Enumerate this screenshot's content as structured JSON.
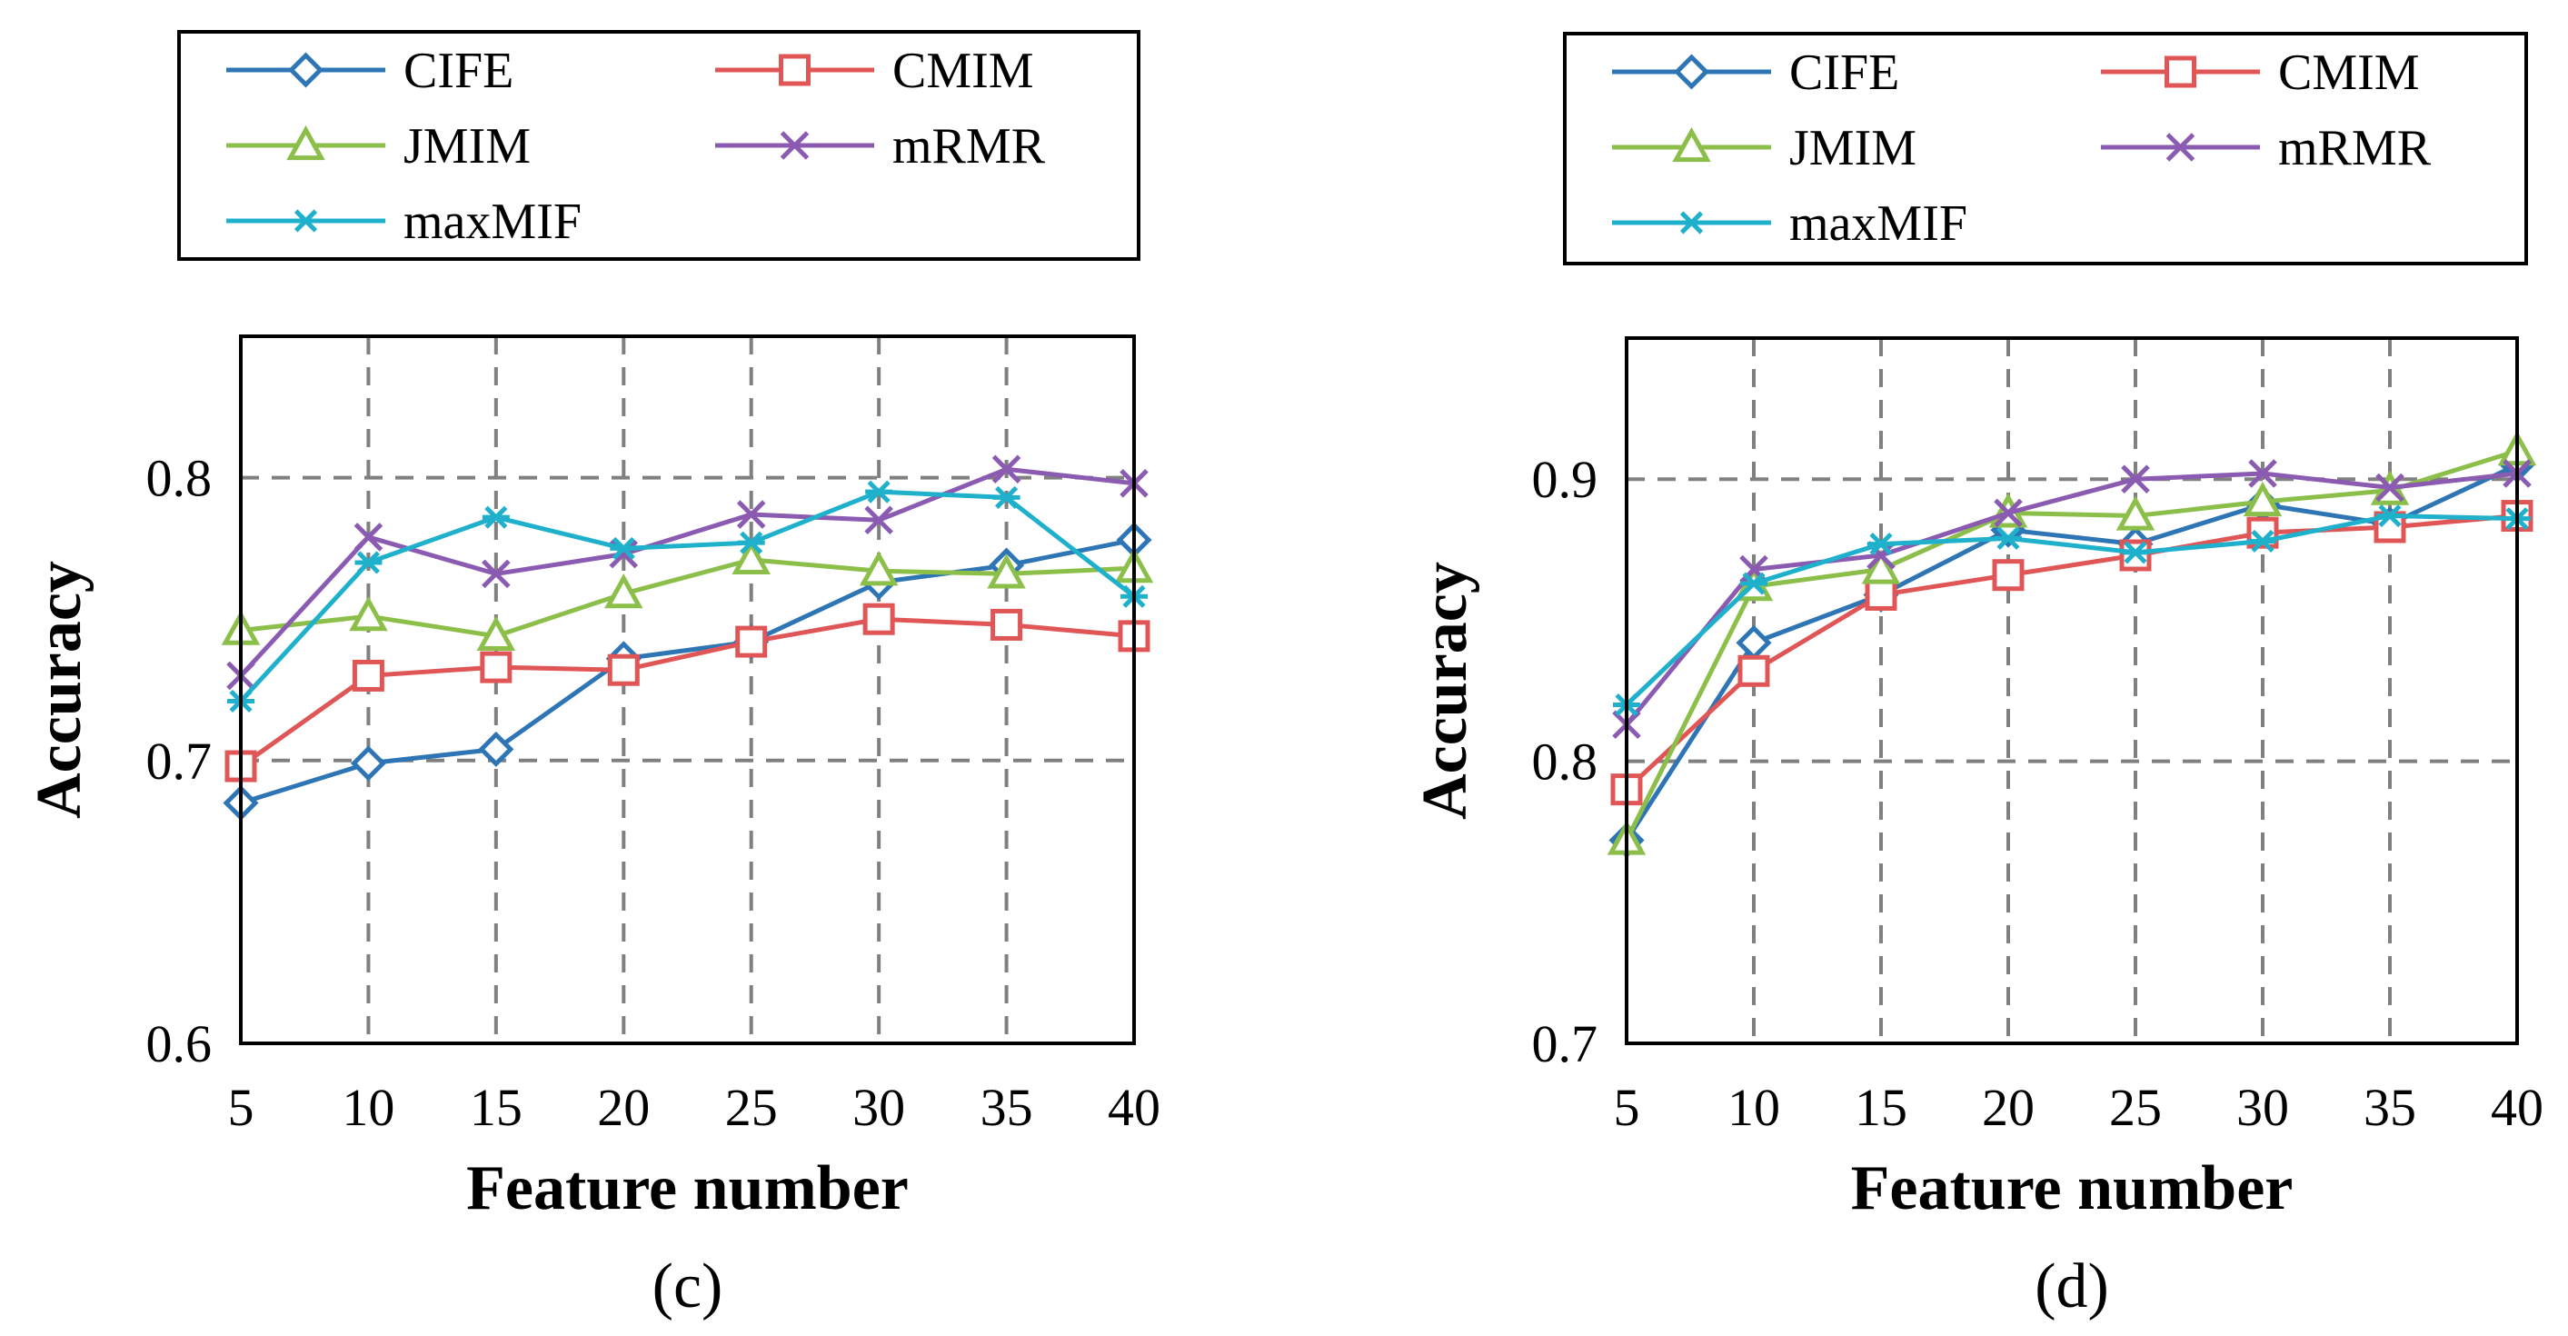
{
  "chart_data": [
    {
      "type": "line",
      "panel_label": "(c)",
      "xlabel": "Feature number",
      "ylabel": "Accuracy",
      "x": [
        5,
        10,
        15,
        20,
        25,
        30,
        35,
        40
      ],
      "xticks": [
        "5",
        "10",
        "15",
        "20",
        "25",
        "30",
        "35",
        "40"
      ],
      "ylim": [
        0.6,
        0.85
      ],
      "yticks": [
        0.6,
        0.7,
        0.8
      ],
      "ytick_labels": [
        "0.6",
        "0.7",
        "0.8"
      ],
      "grid": true,
      "legend_position": "top",
      "series": [
        {
          "name": "CIFE",
          "color": "#2e75b6",
          "marker": "diamond",
          "values": [
            0.685,
            0.699,
            0.704,
            0.736,
            0.742,
            0.763,
            0.769,
            0.778
          ]
        },
        {
          "name": "CMIM",
          "color": "#e05555",
          "marker": "square",
          "values": [
            0.698,
            0.73,
            0.733,
            0.732,
            0.742,
            0.75,
            0.748,
            0.744
          ]
        },
        {
          "name": "JMIM",
          "color": "#8cbe4a",
          "marker": "triangle",
          "values": [
            0.746,
            0.751,
            0.744,
            0.759,
            0.771,
            0.767,
            0.766,
            0.768
          ]
        },
        {
          "name": "mRMR",
          "color": "#8a5bb0",
          "marker": "x",
          "values": [
            0.73,
            0.779,
            0.766,
            0.773,
            0.787,
            0.785,
            0.803,
            0.798
          ]
        },
        {
          "name": "maxMIF",
          "color": "#1fb0cc",
          "marker": "star",
          "values": [
            0.721,
            0.77,
            0.786,
            0.775,
            0.777,
            0.795,
            0.793,
            0.758
          ]
        }
      ]
    },
    {
      "type": "line",
      "panel_label": "(d)",
      "xlabel": "Feature number",
      "ylabel": "Accuracy",
      "x": [
        5,
        10,
        15,
        20,
        25,
        30,
        35,
        40
      ],
      "xticks": [
        "5",
        "10",
        "15",
        "20",
        "25",
        "30",
        "35",
        "40"
      ],
      "ylim": [
        0.7,
        0.95
      ],
      "yticks": [
        0.7,
        0.8,
        0.9
      ],
      "ytick_labels": [
        "0.7",
        "0.8",
        "0.9"
      ],
      "grid": true,
      "legend_position": "top",
      "series": [
        {
          "name": "CIFE",
          "color": "#2e75b6",
          "marker": "diamond",
          "values": [
            0.772,
            0.842,
            0.859,
            0.882,
            0.877,
            0.891,
            0.884,
            0.905
          ]
        },
        {
          "name": "CMIM",
          "color": "#e05555",
          "marker": "square",
          "values": [
            0.79,
            0.832,
            0.859,
            0.866,
            0.873,
            0.881,
            0.883,
            0.887
          ]
        },
        {
          "name": "JMIM",
          "color": "#8cbe4a",
          "marker": "triangle",
          "values": [
            0.772,
            0.862,
            0.868,
            0.888,
            0.887,
            0.892,
            0.896,
            0.91
          ]
        },
        {
          "name": "mRMR",
          "color": "#8a5bb0",
          "marker": "x",
          "values": [
            0.813,
            0.868,
            0.873,
            0.888,
            0.9,
            0.902,
            0.897,
            0.902
          ]
        },
        {
          "name": "maxMIF",
          "color": "#1fb0cc",
          "marker": "star",
          "values": [
            0.82,
            0.863,
            0.877,
            0.879,
            0.874,
            0.878,
            0.887,
            0.886
          ]
        }
      ]
    }
  ]
}
